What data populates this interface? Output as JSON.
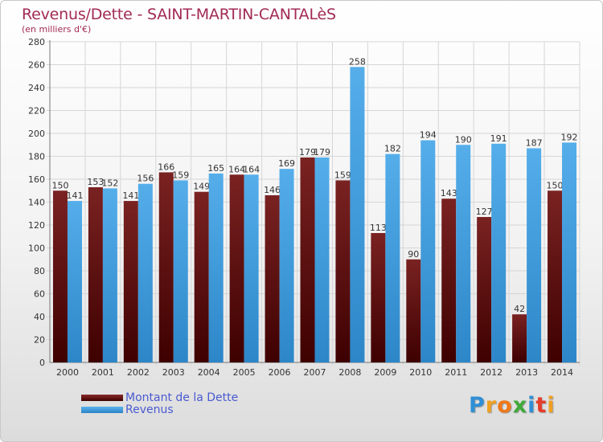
{
  "header": {
    "title": "Revenus/Dette - SAINT-MARTIN-CANTALèS",
    "subtitle": "(en milliers d'€)"
  },
  "legend": {
    "items": [
      {
        "label": "Montant de la Dette",
        "color": "#6a1414"
      },
      {
        "label": "Revenus",
        "color": "#3f9ce0"
      }
    ]
  },
  "logo": {
    "letters": [
      {
        "ch": "P",
        "color": "#2f8fd6"
      },
      {
        "ch": "r",
        "color": "#f0a020"
      },
      {
        "ch": "o",
        "color": "#f07818"
      },
      {
        "ch": "x",
        "color": "#3faa3a"
      },
      {
        "ch": "i",
        "color": "#2f8fd6"
      },
      {
        "ch": "t",
        "color": "#e63c2a"
      },
      {
        "ch": "i",
        "color": "#f0a020"
      }
    ]
  },
  "chart_data": {
    "type": "bar",
    "title": "Revenus/Dette - SAINT-MARTIN-CANTALèS",
    "subtitle": "(en milliers d'€)",
    "categories": [
      "2000",
      "2001",
      "2002",
      "2003",
      "2004",
      "2005",
      "2006",
      "2007",
      "2008",
      "2009",
      "2010",
      "2011",
      "2012",
      "2013",
      "2014"
    ],
    "series": [
      {
        "name": "Montant de la Dette",
        "color": "#6a1414",
        "values": [
          150,
          153,
          141,
          166,
          149,
          164,
          146,
          179,
          159,
          113,
          90,
          143,
          127,
          42,
          150
        ]
      },
      {
        "name": "Revenus",
        "color": "#3f9ce0",
        "values": [
          141,
          152,
          156,
          159,
          165,
          164,
          169,
          179,
          258,
          182,
          194,
          190,
          191,
          187,
          192
        ]
      }
    ],
    "ylim": [
      0,
      280
    ],
    "yticks": [
      0,
      20,
      40,
      60,
      80,
      100,
      120,
      140,
      160,
      180,
      200,
      220,
      240,
      260,
      280
    ],
    "grid": true,
    "legend_position": "bottom-left"
  }
}
